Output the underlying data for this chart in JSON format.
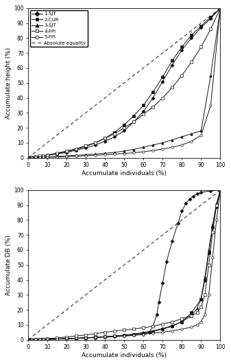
{
  "ylabel_A": "Accumulate height (%)",
  "ylabel_B": "Accumulate DB (%)",
  "xlabel": "Accumulate individuals (%)",
  "xlim": [
    0,
    100
  ],
  "ylim": [
    0,
    100
  ],
  "xticks": [
    0,
    10,
    20,
    30,
    40,
    50,
    60,
    70,
    80,
    90,
    100
  ],
  "yticks": [
    0,
    10,
    20,
    30,
    40,
    50,
    60,
    70,
    80,
    90,
    100
  ],
  "marker_list": [
    "D",
    "s",
    "^",
    "s",
    "o"
  ],
  "filled_list": [
    true,
    true,
    true,
    false,
    false
  ],
  "labels": [
    "1-SJT",
    "2-CUR",
    "3-SJT",
    "4-FPI",
    "5-FPI"
  ],
  "lorenz_A": {
    "1-SJT": [
      [
        0,
        0
      ],
      [
        2,
        0.2
      ],
      [
        4,
        0.5
      ],
      [
        6,
        0.8
      ],
      [
        8,
        1.1
      ],
      [
        10,
        1.5
      ],
      [
        15,
        2.5
      ],
      [
        20,
        3.5
      ],
      [
        25,
        5
      ],
      [
        30,
        6.5
      ],
      [
        35,
        8.5
      ],
      [
        40,
        11
      ],
      [
        45,
        14
      ],
      [
        50,
        18
      ],
      [
        55,
        24
      ],
      [
        60,
        31
      ],
      [
        65,
        40
      ],
      [
        70,
        51
      ],
      [
        75,
        62
      ],
      [
        80,
        72
      ],
      [
        85,
        80
      ],
      [
        90,
        87
      ],
      [
        95,
        93
      ],
      [
        100,
        100
      ]
    ],
    "2-CUR": [
      [
        0,
        0
      ],
      [
        2,
        0.2
      ],
      [
        4,
        0.5
      ],
      [
        6,
        0.8
      ],
      [
        8,
        1.2
      ],
      [
        10,
        1.6
      ],
      [
        15,
        2.8
      ],
      [
        20,
        4
      ],
      [
        25,
        5.5
      ],
      [
        30,
        7.5
      ],
      [
        35,
        10
      ],
      [
        40,
        13
      ],
      [
        45,
        17
      ],
      [
        50,
        22
      ],
      [
        55,
        28
      ],
      [
        60,
        35
      ],
      [
        65,
        44
      ],
      [
        70,
        54
      ],
      [
        75,
        65
      ],
      [
        80,
        74
      ],
      [
        85,
        82
      ],
      [
        90,
        88
      ],
      [
        95,
        94
      ],
      [
        100,
        100
      ]
    ],
    "3-SJT": [
      [
        0,
        0
      ],
      [
        2,
        0.1
      ],
      [
        4,
        0.2
      ],
      [
        6,
        0.3
      ],
      [
        8,
        0.4
      ],
      [
        10,
        0.5
      ],
      [
        15,
        0.8
      ],
      [
        20,
        1.2
      ],
      [
        25,
        1.6
      ],
      [
        30,
        2
      ],
      [
        35,
        2.5
      ],
      [
        40,
        3
      ],
      [
        45,
        3.5
      ],
      [
        50,
        4.5
      ],
      [
        55,
        5.5
      ],
      [
        60,
        7
      ],
      [
        65,
        8.5
      ],
      [
        70,
        10
      ],
      [
        75,
        12
      ],
      [
        80,
        14
      ],
      [
        85,
        16
      ],
      [
        90,
        18
      ],
      [
        95,
        55
      ],
      [
        100,
        100
      ]
    ],
    "4-FPI": [
      [
        0,
        0
      ],
      [
        2,
        0.3
      ],
      [
        4,
        0.6
      ],
      [
        6,
        1
      ],
      [
        8,
        1.4
      ],
      [
        10,
        1.8
      ],
      [
        15,
        3
      ],
      [
        20,
        4.5
      ],
      [
        25,
        6
      ],
      [
        30,
        8
      ],
      [
        35,
        10
      ],
      [
        40,
        13
      ],
      [
        45,
        16
      ],
      [
        50,
        20
      ],
      [
        55,
        24
      ],
      [
        60,
        29
      ],
      [
        65,
        34
      ],
      [
        70,
        40
      ],
      [
        75,
        47
      ],
      [
        80,
        55
      ],
      [
        85,
        64
      ],
      [
        90,
        74
      ],
      [
        95,
        86
      ],
      [
        100,
        100
      ]
    ],
    "5-FPI": [
      [
        0,
        0
      ],
      [
        2,
        0.05
      ],
      [
        4,
        0.1
      ],
      [
        6,
        0.15
      ],
      [
        8,
        0.2
      ],
      [
        10,
        0.3
      ],
      [
        15,
        0.5
      ],
      [
        20,
        0.8
      ],
      [
        25,
        1
      ],
      [
        30,
        1.3
      ],
      [
        35,
        1.6
      ],
      [
        40,
        2
      ],
      [
        45,
        2.4
      ],
      [
        50,
        2.8
      ],
      [
        55,
        3.3
      ],
      [
        60,
        4
      ],
      [
        65,
        4.8
      ],
      [
        70,
        5.8
      ],
      [
        75,
        7
      ],
      [
        80,
        8.5
      ],
      [
        85,
        11
      ],
      [
        90,
        15
      ],
      [
        95,
        35
      ],
      [
        100,
        100
      ]
    ]
  },
  "lorenz_B": {
    "1-SJT": [
      [
        0,
        0
      ],
      [
        2,
        0.05
      ],
      [
        4,
        0.1
      ],
      [
        6,
        0.15
      ],
      [
        8,
        0.2
      ],
      [
        10,
        0.3
      ],
      [
        15,
        0.5
      ],
      [
        20,
        0.7
      ],
      [
        25,
        0.9
      ],
      [
        30,
        1.1
      ],
      [
        35,
        1.4
      ],
      [
        40,
        1.7
      ],
      [
        45,
        2
      ],
      [
        50,
        2.4
      ],
      [
        55,
        2.9
      ],
      [
        60,
        3.5
      ],
      [
        63,
        5
      ],
      [
        65,
        9
      ],
      [
        67,
        17
      ],
      [
        68,
        25
      ],
      [
        70,
        38
      ],
      [
        72,
        52
      ],
      [
        75,
        66
      ],
      [
        78,
        78
      ],
      [
        80,
        86
      ],
      [
        82,
        91
      ],
      [
        84,
        94
      ],
      [
        86,
        96
      ],
      [
        88,
        97.5
      ],
      [
        90,
        98.5
      ],
      [
        95,
        99.5
      ],
      [
        100,
        100
      ]
    ],
    "2-CUR": [
      [
        0,
        0
      ],
      [
        2,
        0.05
      ],
      [
        4,
        0.1
      ],
      [
        6,
        0.15
      ],
      [
        8,
        0.2
      ],
      [
        10,
        0.3
      ],
      [
        15,
        0.5
      ],
      [
        20,
        0.7
      ],
      [
        25,
        1
      ],
      [
        30,
        1.3
      ],
      [
        35,
        1.6
      ],
      [
        40,
        2
      ],
      [
        45,
        2.5
      ],
      [
        50,
        3
      ],
      [
        55,
        3.6
      ],
      [
        60,
        4.5
      ],
      [
        65,
        5.5
      ],
      [
        70,
        7
      ],
      [
        75,
        9
      ],
      [
        80,
        12
      ],
      [
        85,
        18
      ],
      [
        90,
        27
      ],
      [
        92,
        40
      ],
      [
        94,
        58
      ],
      [
        96,
        75
      ],
      [
        98,
        89
      ],
      [
        100,
        100
      ]
    ],
    "3-SJT": [
      [
        0,
        0
      ],
      [
        2,
        0.05
      ],
      [
        4,
        0.1
      ],
      [
        6,
        0.15
      ],
      [
        8,
        0.2
      ],
      [
        10,
        0.3
      ],
      [
        15,
        0.5
      ],
      [
        20,
        0.7
      ],
      [
        25,
        1
      ],
      [
        30,
        1.3
      ],
      [
        35,
        1.6
      ],
      [
        40,
        2
      ],
      [
        45,
        2.4
      ],
      [
        50,
        3
      ],
      [
        55,
        3.8
      ],
      [
        60,
        4.8
      ],
      [
        65,
        6
      ],
      [
        70,
        7.5
      ],
      [
        75,
        9.5
      ],
      [
        80,
        12
      ],
      [
        85,
        16
      ],
      [
        88,
        21
      ],
      [
        90,
        28
      ],
      [
        92,
        42
      ],
      [
        94,
        60
      ],
      [
        96,
        77
      ],
      [
        98,
        91
      ],
      [
        100,
        100
      ]
    ],
    "4-FPI": [
      [
        0,
        0
      ],
      [
        2,
        0.1
      ],
      [
        4,
        0.2
      ],
      [
        6,
        0.3
      ],
      [
        8,
        0.5
      ],
      [
        10,
        0.7
      ],
      [
        15,
        1.2
      ],
      [
        20,
        1.8
      ],
      [
        25,
        2.5
      ],
      [
        30,
        3.2
      ],
      [
        35,
        4
      ],
      [
        40,
        5
      ],
      [
        45,
        5.8
      ],
      [
        50,
        6.5
      ],
      [
        55,
        7.2
      ],
      [
        60,
        8
      ],
      [
        65,
        9
      ],
      [
        70,
        10.5
      ],
      [
        75,
        12
      ],
      [
        80,
        14
      ],
      [
        85,
        16
      ],
      [
        88,
        18
      ],
      [
        90,
        22
      ],
      [
        92,
        30
      ],
      [
        94,
        50
      ],
      [
        96,
        72
      ],
      [
        98,
        90
      ],
      [
        100,
        100
      ]
    ],
    "5-FPI": [
      [
        0,
        0
      ],
      [
        2,
        0.05
      ],
      [
        4,
        0.1
      ],
      [
        6,
        0.15
      ],
      [
        8,
        0.2
      ],
      [
        10,
        0.3
      ],
      [
        15,
        0.5
      ],
      [
        20,
        0.7
      ],
      [
        25,
        1
      ],
      [
        30,
        1.3
      ],
      [
        35,
        1.6
      ],
      [
        40,
        2
      ],
      [
        45,
        2.4
      ],
      [
        50,
        2.8
      ],
      [
        55,
        3.2
      ],
      [
        60,
        3.7
      ],
      [
        65,
        4.3
      ],
      [
        70,
        5
      ],
      [
        75,
        6
      ],
      [
        80,
        7
      ],
      [
        85,
        8.5
      ],
      [
        88,
        10
      ],
      [
        90,
        12
      ],
      [
        92,
        17
      ],
      [
        94,
        30
      ],
      [
        96,
        55
      ],
      [
        98,
        80
      ],
      [
        100,
        100
      ]
    ]
  }
}
